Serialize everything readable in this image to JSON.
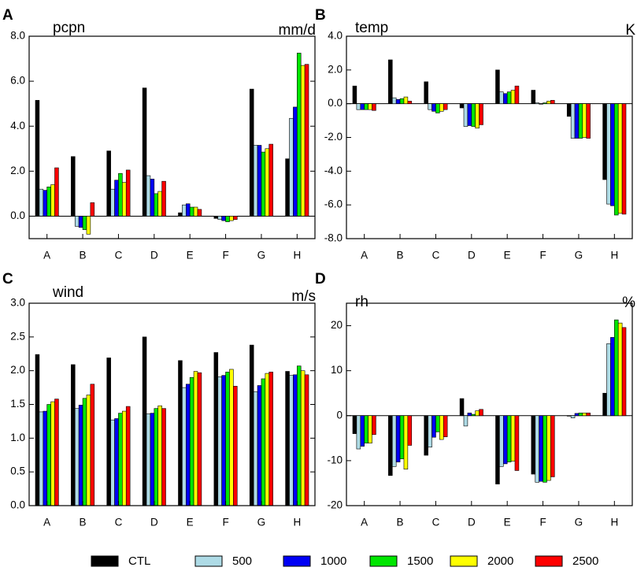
{
  "chart_data": [
    {
      "type": "bar",
      "panel_label": "A",
      "title": "pcpn",
      "units": "mm/d",
      "categories": [
        "A",
        "B",
        "C",
        "D",
        "E",
        "F",
        "G",
        "H"
      ],
      "ylim": [
        -1.0,
        8.0
      ],
      "yticks": [
        0.0,
        2.0,
        4.0,
        6.0,
        8.0
      ],
      "ytick_labels": [
        "0.0",
        "2.0",
        "4.0",
        "6.0",
        "8.0"
      ],
      "series": [
        {
          "name": "CTL",
          "values": [
            5.15,
            2.65,
            2.9,
            5.7,
            0.15,
            -0.1,
            5.65,
            2.55
          ]
        },
        {
          "name": "500",
          "values": [
            1.2,
            -0.45,
            1.2,
            1.8,
            0.5,
            -0.15,
            3.15,
            4.35
          ]
        },
        {
          "name": "1000",
          "values": [
            1.15,
            -0.5,
            1.6,
            1.65,
            0.55,
            -0.2,
            3.15,
            4.85
          ]
        },
        {
          "name": "1500",
          "values": [
            1.3,
            -0.6,
            1.9,
            1.0,
            0.4,
            -0.25,
            2.85,
            7.25
          ]
        },
        {
          "name": "2000",
          "values": [
            1.4,
            -0.8,
            1.5,
            1.1,
            0.4,
            -0.2,
            3.0,
            6.7
          ]
        },
        {
          "name": "2500",
          "values": [
            2.15,
            0.6,
            2.05,
            1.55,
            0.3,
            -0.15,
            3.2,
            6.75
          ]
        }
      ]
    },
    {
      "type": "bar",
      "panel_label": "B",
      "title": "temp",
      "units": "K",
      "categories": [
        "A",
        "B",
        "C",
        "D",
        "E",
        "F",
        "G",
        "H"
      ],
      "ylim": [
        -8.0,
        4.0
      ],
      "yticks": [
        -8.0,
        -6.0,
        -4.0,
        -2.0,
        0.0,
        2.0,
        4.0
      ],
      "ytick_labels": [
        "-8.0",
        "-6.0",
        "-4.0",
        "-2.0",
        "0.0",
        "2.0",
        "4.0"
      ],
      "series": [
        {
          "name": "CTL",
          "values": [
            1.05,
            2.6,
            1.3,
            -0.25,
            2.0,
            0.8,
            -0.75,
            -4.5
          ]
        },
        {
          "name": "500",
          "values": [
            -0.35,
            0.35,
            -0.35,
            -1.35,
            0.7,
            0.05,
            -2.05,
            -5.95
          ]
        },
        {
          "name": "1000",
          "values": [
            -0.35,
            0.25,
            -0.45,
            -1.3,
            0.6,
            0.0,
            -2.05,
            -6.05
          ]
        },
        {
          "name": "1500",
          "values": [
            -0.35,
            0.3,
            -0.55,
            -1.35,
            0.7,
            0.05,
            -2.05,
            -6.6
          ]
        },
        {
          "name": "2000",
          "values": [
            -0.35,
            0.4,
            -0.45,
            -1.45,
            0.8,
            0.15,
            -2.0,
            -6.5
          ]
        },
        {
          "name": "2500",
          "values": [
            -0.4,
            0.15,
            -0.35,
            -1.25,
            1.05,
            0.2,
            -2.05,
            -6.55
          ]
        }
      ]
    },
    {
      "type": "bar",
      "panel_label": "C",
      "title": "wind",
      "units": "m/s",
      "categories": [
        "A",
        "B",
        "C",
        "D",
        "E",
        "F",
        "G",
        "H"
      ],
      "ylim": [
        0.0,
        3.0
      ],
      "yticks": [
        0.0,
        0.5,
        1.0,
        1.5,
        2.0,
        2.5,
        3.0
      ],
      "ytick_labels": [
        "0.0",
        "0.5",
        "1.0",
        "1.5",
        "2.0",
        "2.5",
        "3.0"
      ],
      "series": [
        {
          "name": "CTL",
          "values": [
            2.24,
            2.09,
            2.19,
            2.5,
            2.15,
            2.27,
            2.38,
            1.99
          ]
        },
        {
          "name": "500",
          "values": [
            1.39,
            1.44,
            1.27,
            1.36,
            1.75,
            1.91,
            1.69,
            1.93
          ]
        },
        {
          "name": "1000",
          "values": [
            1.4,
            1.49,
            1.29,
            1.37,
            1.8,
            1.93,
            1.78,
            1.94
          ]
        },
        {
          "name": "1500",
          "values": [
            1.5,
            1.59,
            1.37,
            1.44,
            1.9,
            1.98,
            1.88,
            2.07
          ]
        },
        {
          "name": "2000",
          "values": [
            1.54,
            1.64,
            1.4,
            1.48,
            1.99,
            2.02,
            1.96,
            2.0
          ]
        },
        {
          "name": "2500",
          "values": [
            1.58,
            1.8,
            1.47,
            1.44,
            1.97,
            1.77,
            1.98,
            1.94
          ]
        }
      ]
    },
    {
      "type": "bar",
      "panel_label": "D",
      "title": "rh",
      "units": "%",
      "categories": [
        "A",
        "B",
        "C",
        "D",
        "E",
        "F",
        "G",
        "H"
      ],
      "ylim": [
        -20,
        25
      ],
      "yticks": [
        -20,
        -10,
        0,
        10,
        20
      ],
      "ytick_labels": [
        "-20",
        "-10",
        "0",
        "10",
        "20"
      ],
      "series": [
        {
          "name": "CTL",
          "values": [
            -4.0,
            -13.3,
            -8.8,
            3.8,
            -15.2,
            -13.0,
            0.0,
            5.0
          ]
        },
        {
          "name": "500",
          "values": [
            -7.4,
            -11.3,
            -7.0,
            -2.3,
            -11.3,
            -14.8,
            -0.5,
            16.0
          ]
        },
        {
          "name": "1000",
          "values": [
            -6.8,
            -10.3,
            -4.8,
            0.6,
            -10.7,
            -14.6,
            0.5,
            17.4
          ]
        },
        {
          "name": "1500",
          "values": [
            -6.1,
            -9.6,
            -3.6,
            0.3,
            -10.3,
            -14.8,
            0.6,
            21.3
          ]
        },
        {
          "name": "2000",
          "values": [
            -6.1,
            -11.9,
            -5.3,
            1.1,
            -10.1,
            -14.4,
            0.6,
            20.6
          ]
        },
        {
          "name": "2500",
          "values": [
            -4.2,
            -6.6,
            -4.7,
            1.4,
            -12.2,
            -13.6,
            0.6,
            19.6
          ]
        }
      ]
    }
  ],
  "legend": {
    "entries": [
      {
        "name": "CTL",
        "color": "#000000"
      },
      {
        "name": "500",
        "color": "#aedbe6"
      },
      {
        "name": "1000",
        "color": "#0000f5"
      },
      {
        "name": "1500",
        "color": "#00e600"
      },
      {
        "name": "2000",
        "color": "#ffff00"
      },
      {
        "name": "2500",
        "color": "#ff0000"
      }
    ]
  }
}
